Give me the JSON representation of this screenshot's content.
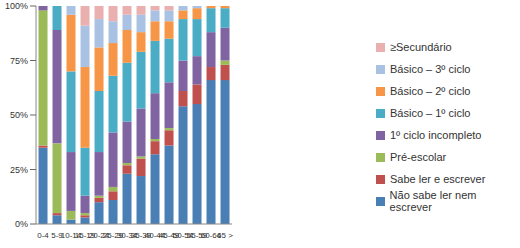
{
  "chart_data": {
    "type": "bar",
    "stacked": true,
    "grid": false,
    "legend": "right",
    "categories": [
      "0-4",
      "5-9",
      "10-14",
      "15-19",
      "20-24",
      "25-29",
      "30-34",
      "35-39",
      "40-44",
      "45-49",
      "50-54",
      "55-59",
      "60-64",
      "65 >"
    ],
    "ylim": [
      0,
      100
    ],
    "yticks": [
      {
        "value": 0,
        "label": "0%"
      },
      {
        "value": 25,
        "label": "25%"
      },
      {
        "value": 50,
        "label": "50%"
      },
      {
        "value": 75,
        "label": "75%"
      },
      {
        "value": 100,
        "label": "100%"
      }
    ],
    "series": [
      {
        "name": "Não sabe ler nem escrever",
        "color": "#4a7fb5",
        "values": [
          35,
          4,
          2,
          3,
          10,
          11,
          23,
          22,
          32,
          36,
          54,
          55,
          66,
          66
        ]
      },
      {
        "name": "Sabe ler e escrever",
        "color": "#c0504d",
        "values": [
          1,
          1,
          0,
          1,
          2,
          4,
          4,
          8,
          6,
          7,
          7,
          9,
          6,
          7
        ]
      },
      {
        "name": "Pré-escolar",
        "color": "#9bbb59",
        "values": [
          62,
          32,
          4,
          1,
          1,
          2,
          1,
          1,
          1,
          1,
          0,
          0,
          0,
          2
        ]
      },
      {
        "name": "1º ciclo  incompleto",
        "color": "#8064a2",
        "values": [
          2,
          52,
          27,
          8,
          20,
          25,
          19,
          22,
          21,
          21,
          14,
          13,
          16,
          15
        ]
      },
      {
        "name": "Básico – 1º ciclo",
        "color": "#4bacc6",
        "values": [
          0,
          11,
          37,
          22,
          28,
          26,
          27,
          26,
          24,
          20,
          19,
          17,
          11,
          9
        ]
      },
      {
        "name": "Básico – 2º ciclo",
        "color": "#f79646",
        "values": [
          0,
          0,
          26,
          37,
          20,
          15,
          15,
          9,
          9,
          8,
          4,
          5,
          1,
          1
        ]
      },
      {
        "name": "Básico – 3º ciclo",
        "color": "#a9c1e3",
        "values": [
          0,
          0,
          4,
          19,
          13,
          10,
          7,
          8,
          5,
          5,
          2,
          1,
          0,
          0
        ]
      },
      {
        "name": "≥Secundário",
        "color": "#eab0b0",
        "values": [
          0,
          0,
          0,
          9,
          6,
          7,
          4,
          4,
          2,
          2,
          0,
          0,
          0,
          0
        ]
      }
    ]
  }
}
